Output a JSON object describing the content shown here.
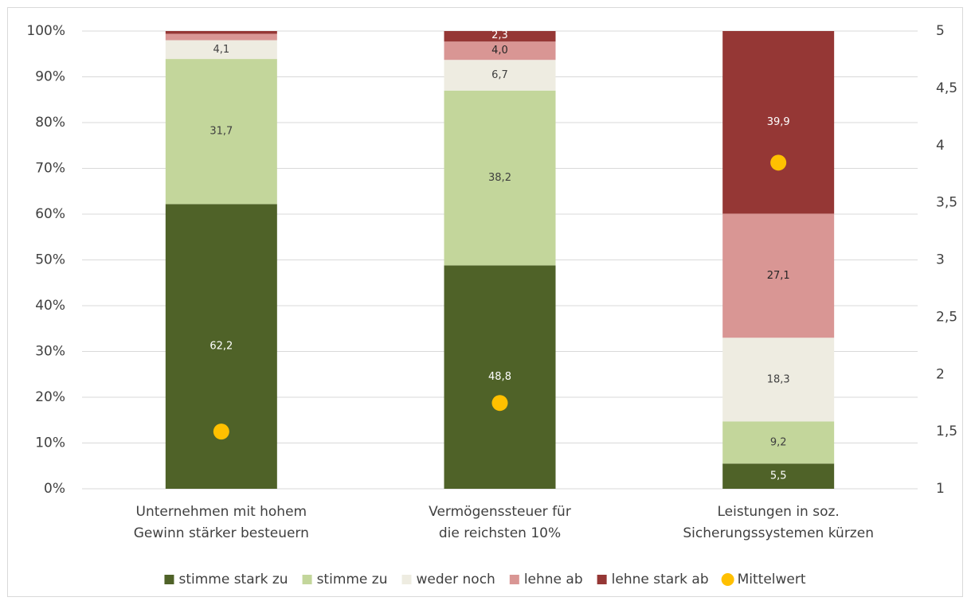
{
  "chart_data": {
    "type": "stacked_bar",
    "categories": [
      [
        "Unternehmen mit hohem",
        "Gewinn stärker besteuern"
      ],
      [
        "Vermögenssteuer für",
        "die reichsten 10%"
      ],
      [
        "Leistungen in soz.",
        "Sicherungssystemen kürzen"
      ]
    ],
    "series": [
      {
        "name": "stimme stark zu",
        "color": "#4f6228",
        "values": [
          62.2,
          48.8,
          5.5
        ],
        "value_labels": [
          "62,2",
          "48,8",
          "5,5"
        ]
      },
      {
        "name": "stimme zu",
        "color": "#c3d69b",
        "values": [
          31.7,
          38.2,
          9.2
        ],
        "value_labels": [
          "31,7",
          "38,2",
          "9,2"
        ]
      },
      {
        "name": "weder noch",
        "color": "#eeece1",
        "values": [
          4.1,
          6.7,
          18.3
        ],
        "value_labels": [
          "4,1",
          "6,7",
          "18,3"
        ]
      },
      {
        "name": "lehne ab",
        "color": "#d99694",
        "values": [
          1.4,
          4.0,
          27.1
        ],
        "value_labels": [
          null,
          "4,0",
          "27,1"
        ]
      },
      {
        "name": "lehne stark ab",
        "color": "#953735",
        "values": [
          0.6,
          2.3,
          39.9
        ],
        "value_labels": [
          null,
          "2,3",
          "39,9"
        ]
      },
      {
        "name": "Mittelwert",
        "color": "#ffc000",
        "type": "scatter",
        "axis": "y2",
        "values": [
          1.5,
          1.75,
          3.85
        ]
      }
    ],
    "ylim": [
      0,
      100
    ],
    "yticks": [
      {
        "value": 0,
        "label": "0%"
      },
      {
        "value": 10,
        "label": "10%"
      },
      {
        "value": 20,
        "label": "20%"
      },
      {
        "value": 30,
        "label": "30%"
      },
      {
        "value": 40,
        "label": "40%"
      },
      {
        "value": 50,
        "label": "50%"
      },
      {
        "value": 60,
        "label": "60%"
      },
      {
        "value": 70,
        "label": "70%"
      },
      {
        "value": 80,
        "label": "80%"
      },
      {
        "value": 90,
        "label": "90%"
      },
      {
        "value": 100,
        "label": "100%"
      }
    ],
    "y2lim": [
      1,
      5
    ],
    "y2ticks": [
      1,
      {
        "value": 1.5,
        "label": "1,5"
      },
      2,
      {
        "value": 2.5,
        "label": "2,5"
      },
      3,
      {
        "value": 3.5,
        "label": "3,5"
      },
      4,
      {
        "value": 4.5,
        "label": "4,5"
      },
      5
    ],
    "grid": true,
    "legend": "bottom"
  }
}
